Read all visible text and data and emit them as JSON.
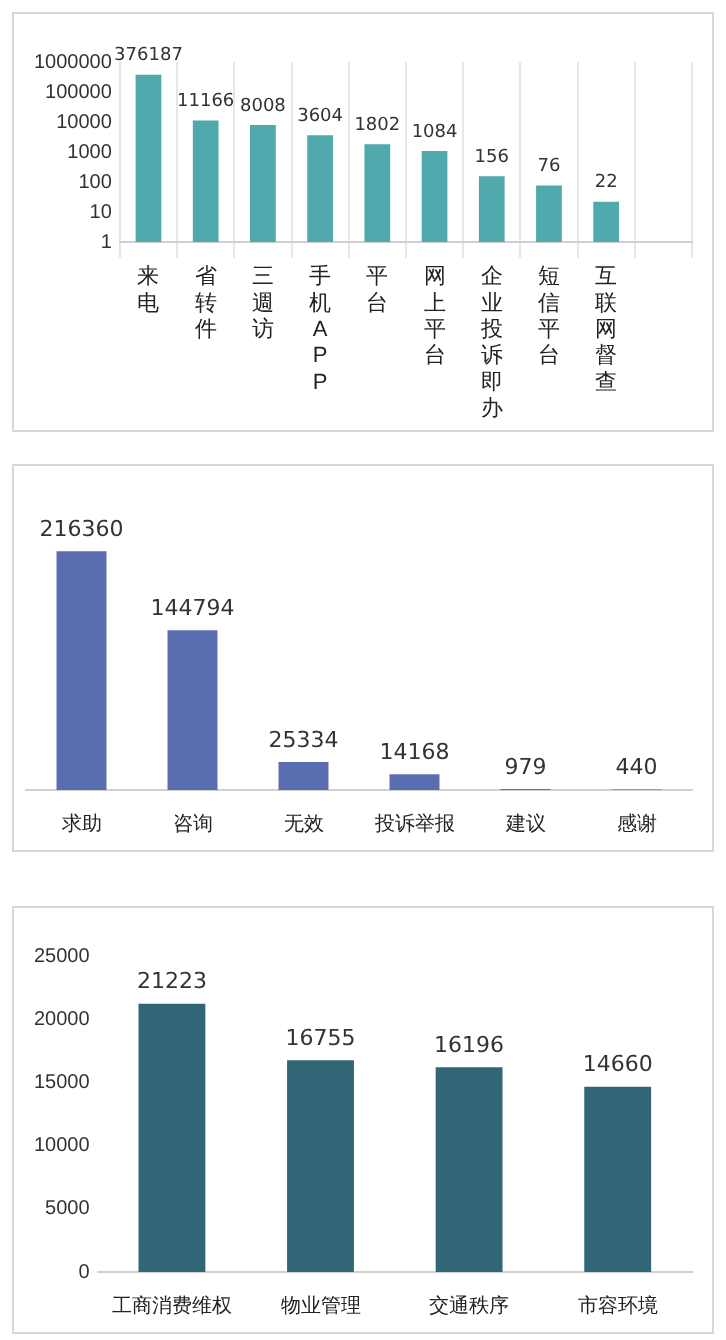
{
  "chart_data": [
    {
      "type": "bar",
      "categories": [
        "来电",
        "省转件",
        "三週访",
        "手机APP",
        "平台",
        "网上平台",
        "企业投诉即办",
        "短信平台",
        "互联网督查",
        null
      ],
      "values": [
        376187,
        11166,
        8008,
        3604,
        1802,
        1084,
        156,
        76,
        22,
        null
      ],
      "color": "#4fa9ad",
      "log": "y",
      "ylim": [
        1,
        1000000
      ],
      "yticks": [
        1,
        10,
        100,
        1000,
        10000,
        100000,
        1000000
      ],
      "grid": "x",
      "data_labels": true,
      "legend": false
    },
    {
      "type": "bar",
      "categories": [
        "求助",
        "咨询",
        "无效",
        "投诉举报",
        "建议",
        "感谢"
      ],
      "values": [
        216360,
        144794,
        25334,
        14168,
        979,
        440
      ],
      "color": "#5a6db0",
      "data_labels": true,
      "tick_labels": "x",
      "grid": false,
      "legend": false
    },
    {
      "type": "bar",
      "categories": [
        "工商消费维权",
        "物业管理",
        "交通秩序",
        "市容环境"
      ],
      "values": [
        21223,
        16755,
        16196,
        14660
      ],
      "color": "#316677",
      "ylim": [
        0,
        25000
      ],
      "yticks": [
        0,
        5000,
        10000,
        15000,
        20000,
        25000
      ],
      "grid": false,
      "data_labels": true,
      "legend": false
    }
  ]
}
